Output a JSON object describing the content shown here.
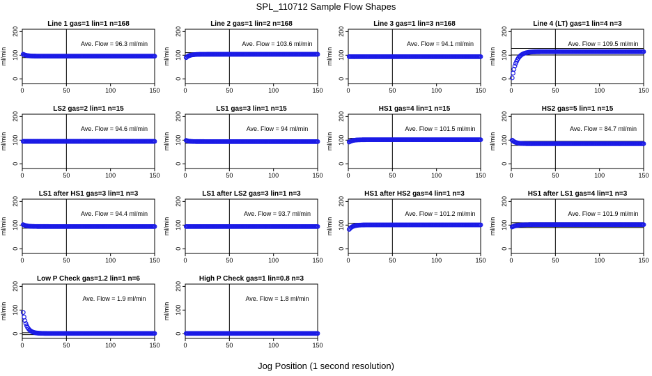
{
  "title": "SPL_110712  Sample Flow Shapes",
  "xlabel": "Jog Position (1 second resolution)",
  "chart_data": [
    {
      "type": "scatter",
      "title": "Line 1 gas=1 lin=1 n=168",
      "annotation": "Ave. Flow = 96.3  ml/min",
      "ylabel": "ml/min",
      "xlim": [
        0,
        150
      ],
      "ylim": [
        -20,
        210
      ],
      "xticks": [
        0,
        50,
        100,
        150
      ],
      "yticks": [
        0,
        100,
        200
      ],
      "vline": 50,
      "hlines": [
        103,
        90
      ],
      "shape": {
        "start": 104,
        "level": 96,
        "tau": 4
      }
    },
    {
      "type": "scatter",
      "title": "Line 2 gas=1 lin=2 n=168",
      "annotation": "Ave. Flow = 103.6  ml/min",
      "ylabel": "ml/min",
      "xlim": [
        0,
        150
      ],
      "ylim": [
        -20,
        210
      ],
      "xticks": [
        0,
        50,
        100,
        150
      ],
      "yticks": [
        0,
        100,
        200
      ],
      "vline": 50,
      "hlines": [
        111,
        96
      ],
      "shape": {
        "start": 90,
        "level": 104,
        "tau": 4
      }
    },
    {
      "type": "scatter",
      "title": "Line 3 gas=1 lin=3 n=168",
      "annotation": "Ave. Flow = 94.1  ml/min",
      "ylabel": "ml/min",
      "xlim": [
        0,
        150
      ],
      "ylim": [
        -20,
        210
      ],
      "xticks": [
        0,
        50,
        100,
        150
      ],
      "yticks": [
        0,
        100,
        200
      ],
      "vline": 50,
      "hlines": [
        101,
        87
      ],
      "shape": {
        "start": 94,
        "level": 94,
        "tau": 3
      }
    },
    {
      "type": "scatter",
      "title": "Line 4 (LT) gas=1 lin=4 n=3",
      "annotation": "Ave. Flow = 109.5  ml/min",
      "ylabel": "ml/min",
      "xlim": [
        0,
        150
      ],
      "ylim": [
        -20,
        210
      ],
      "xticks": [
        0,
        50,
        100,
        150
      ],
      "yticks": [
        0,
        100,
        200
      ],
      "vline": 50,
      "hlines": [
        129,
        101
      ],
      "shape": {
        "start": 4,
        "level": 115,
        "tau": 5
      }
    },
    {
      "type": "scatter",
      "title": "LS2 gas=2 lin=1 n=15",
      "annotation": "Ave. Flow = 94.6  ml/min",
      "ylabel": "ml/min",
      "xlim": [
        0,
        150
      ],
      "ylim": [
        -20,
        210
      ],
      "xticks": [
        0,
        50,
        100,
        150
      ],
      "yticks": [
        0,
        100,
        200
      ],
      "vline": 50,
      "hlines": [
        101,
        87
      ],
      "shape": {
        "start": 95,
        "level": 95,
        "tau": 3
      }
    },
    {
      "type": "scatter",
      "title": "LS1 gas=3 lin=1 n=15",
      "annotation": "Ave. Flow = 94  ml/min",
      "ylabel": "ml/min",
      "xlim": [
        0,
        150
      ],
      "ylim": [
        -20,
        210
      ],
      "xticks": [
        0,
        50,
        100,
        150
      ],
      "yticks": [
        0,
        100,
        200
      ],
      "vline": 50,
      "hlines": [
        101,
        87
      ],
      "shape": {
        "start": 99,
        "level": 94,
        "tau": 3
      }
    },
    {
      "type": "scatter",
      "title": "HS1 gas=4 lin=1 n=15",
      "annotation": "Ave. Flow = 101.5  ml/min",
      "ylabel": "ml/min",
      "xlim": [
        0,
        150
      ],
      "ylim": [
        -20,
        210
      ],
      "xticks": [
        0,
        50,
        100,
        150
      ],
      "yticks": [
        0,
        100,
        200
      ],
      "vline": 50,
      "hlines": [
        108,
        95
      ],
      "shape": {
        "start": 92,
        "level": 102,
        "tau": 4
      }
    },
    {
      "type": "scatter",
      "title": "HS2 gas=5 lin=1 n=15",
      "annotation": "Ave. Flow = 84.7  ml/min",
      "ylabel": "ml/min",
      "xlim": [
        0,
        150
      ],
      "ylim": [
        -20,
        210
      ],
      "xticks": [
        0,
        50,
        100,
        150
      ],
      "yticks": [
        0,
        100,
        200
      ],
      "vline": 50,
      "hlines": [
        95,
        78
      ],
      "shape": {
        "start": 100,
        "level": 85,
        "tau": 4
      }
    },
    {
      "type": "scatter",
      "title": "LS1 after HS1 gas=3 lin=1 n=3",
      "annotation": "Ave. Flow = 94.4  ml/min",
      "ylabel": "ml/min",
      "xlim": [
        0,
        150
      ],
      "ylim": [
        -20,
        210
      ],
      "xticks": [
        0,
        50,
        100,
        150
      ],
      "yticks": [
        0,
        100,
        200
      ],
      "vline": 50,
      "hlines": [
        101,
        87
      ],
      "shape": {
        "start": 102,
        "level": 94,
        "tau": 4
      }
    },
    {
      "type": "scatter",
      "title": "LS1 after LS2 gas=3 lin=1 n=3",
      "annotation": "Ave. Flow = 93.7  ml/min",
      "ylabel": "ml/min",
      "xlim": [
        0,
        150
      ],
      "ylim": [
        -20,
        210
      ],
      "xticks": [
        0,
        50,
        100,
        150
      ],
      "yticks": [
        0,
        100,
        200
      ],
      "vline": 50,
      "hlines": [
        100,
        87
      ],
      "shape": {
        "start": 94,
        "level": 94,
        "tau": 3
      }
    },
    {
      "type": "scatter",
      "title": "HS1 after HS2 gas=4 lin=1 n=3",
      "annotation": "Ave. Flow = 101.2  ml/min",
      "ylabel": "ml/min",
      "xlim": [
        0,
        150
      ],
      "ylim": [
        -20,
        210
      ],
      "xticks": [
        0,
        50,
        100,
        150
      ],
      "yticks": [
        0,
        100,
        200
      ],
      "vline": 50,
      "hlines": [
        108,
        95
      ],
      "shape": {
        "start": 82,
        "level": 101,
        "tau": 4
      }
    },
    {
      "type": "scatter",
      "title": "HS1 after LS1 gas=4 lin=1 n=3",
      "annotation": "Ave. Flow = 101.9  ml/min",
      "ylabel": "ml/min",
      "xlim": [
        0,
        150
      ],
      "ylim": [
        -20,
        210
      ],
      "xticks": [
        0,
        50,
        100,
        150
      ],
      "yticks": [
        0,
        100,
        200
      ],
      "vline": 50,
      "hlines": [
        110,
        90
      ],
      "shape": {
        "start": 92,
        "level": 102,
        "tau": 5
      }
    },
    {
      "type": "scatter",
      "title": "Low P Check gas=1.2 lin=1 n=6",
      "annotation": "Ave. Flow = 1.9  ml/min",
      "ylabel": "ml/min",
      "xlim": [
        0,
        150
      ],
      "ylim": [
        -20,
        210
      ],
      "xticks": [
        0,
        50,
        100,
        150
      ],
      "yticks": [
        0,
        100,
        200
      ],
      "vline": 50,
      "hlines": [
        4,
        -4
      ],
      "shape": {
        "start": 90,
        "level": 1,
        "tau": 4
      }
    },
    {
      "type": "scatter",
      "title": "High P Check gas=1 lin=0.8 n=3",
      "annotation": "Ave. Flow = 1.8  ml/min",
      "ylabel": "ml/min",
      "xlim": [
        0,
        150
      ],
      "ylim": [
        -20,
        210
      ],
      "xticks": [
        0,
        50,
        100,
        150
      ],
      "yticks": [
        0,
        100,
        200
      ],
      "vline": 50,
      "hlines": [
        4,
        -4
      ],
      "shape": {
        "start": 1,
        "level": 1,
        "tau": 3
      }
    }
  ],
  "colors": {
    "points": "#1a1ae6",
    "axis": "#000000"
  }
}
